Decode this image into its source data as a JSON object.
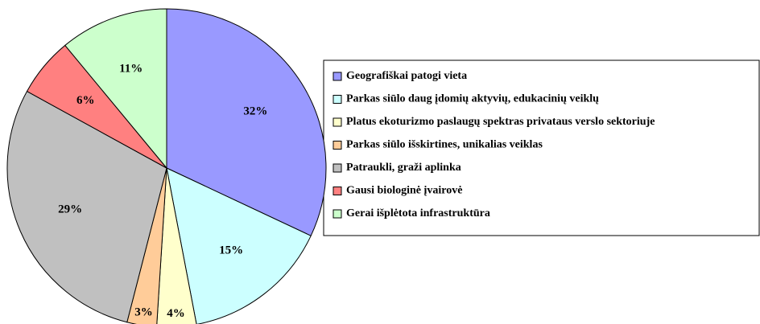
{
  "chart_data": {
    "type": "pie",
    "categories": [
      "Geografiškai patogi vieta",
      "Parkas siūlo daug įdomių aktyvių, edukacinių veiklų",
      "Platus ekoturizmo paslaugų spektras privataus verslo sektoriuje",
      "Parkas siūlo išskirtines, unikalias veiklas",
      "Patraukli, graži aplinka",
      "Gausi biologinė įvairovė",
      "Gerai išplėtota infrastruktūra"
    ],
    "values": [
      32,
      15,
      4,
      3,
      29,
      6,
      11
    ],
    "value_labels": [
      "32%",
      "15%",
      "4%",
      "3%",
      "29%",
      "6%",
      "11%"
    ],
    "colors": [
      "#9999ff",
      "#ccffff",
      "#ffffcc",
      "#ffcc99",
      "#c0c0c0",
      "#ff8080",
      "#ccffcc"
    ],
    "legend": "right"
  }
}
